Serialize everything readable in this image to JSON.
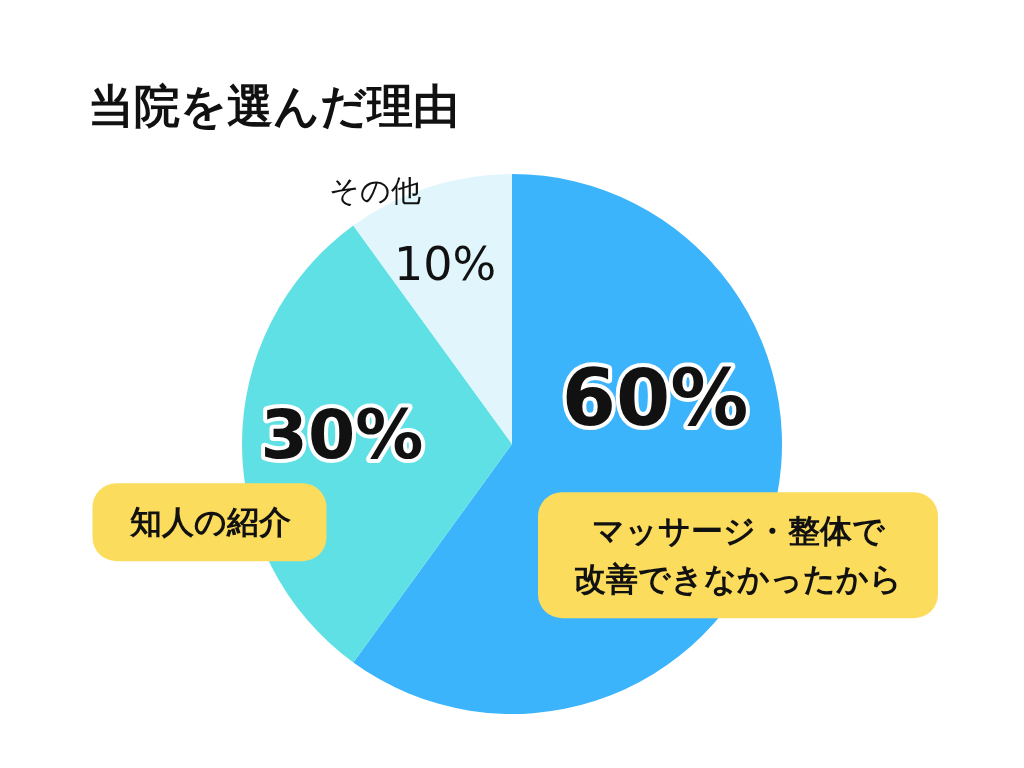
{
  "chart_data": {
    "type": "pie",
    "title": "当院を選んだ理由",
    "categories": [
      "マッサージ・整体で改善できなかったから",
      "知人の紹介",
      "その他"
    ],
    "values": [
      60,
      30,
      10
    ],
    "colors": [
      "#3bb4fc",
      "#5ee0e4",
      "#e0f6fc"
    ],
    "value_labels": [
      "60%",
      "30%",
      "10%"
    ]
  }
}
